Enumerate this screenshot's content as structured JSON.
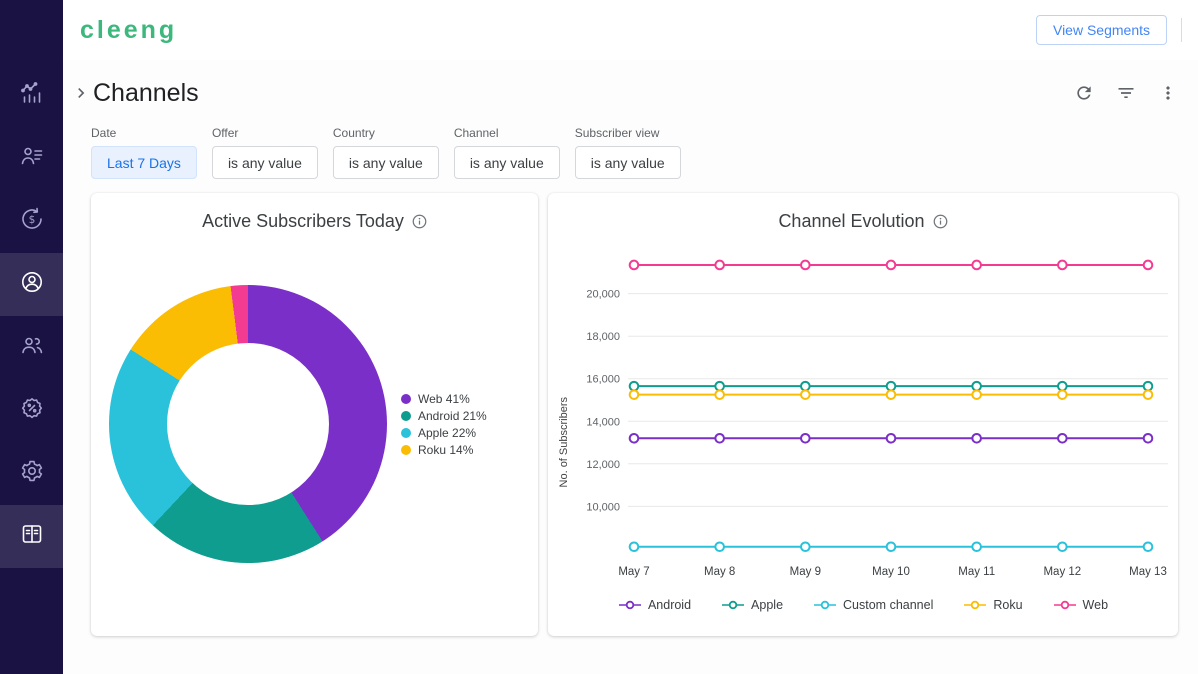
{
  "app": {
    "logo_text": "cleeng",
    "header": {
      "view_segments_label": "View Segments"
    }
  },
  "sidebar": {
    "items": [
      {
        "name": "analytics",
        "icon": "chart-icon",
        "active": false
      },
      {
        "name": "subscribers",
        "icon": "subscriber-list-icon",
        "active": false
      },
      {
        "name": "finance",
        "icon": "dollar-icon",
        "active": false
      },
      {
        "name": "active-subscribers",
        "icon": "person-circle-icon",
        "active": true
      },
      {
        "name": "audience",
        "icon": "people-icon",
        "active": false
      },
      {
        "name": "coupons",
        "icon": "percent-badge-icon",
        "active": false
      },
      {
        "name": "settings",
        "icon": "gear-icon",
        "active": false
      },
      {
        "name": "reports",
        "icon": "book-icon",
        "active": true
      }
    ]
  },
  "page": {
    "title": "Channels"
  },
  "filters": [
    {
      "label": "Date",
      "value": "Last 7 Days",
      "active": true
    },
    {
      "label": "Offer",
      "value": "is any value",
      "active": false
    },
    {
      "label": "Country",
      "value": "is any value",
      "active": false
    },
    {
      "label": "Channel",
      "value": "is any value",
      "active": false
    },
    {
      "label": "Subscriber view",
      "value": "is any value",
      "active": false
    }
  ],
  "cards": {
    "donut": {
      "title": "Active Subscribers Today"
    },
    "evolution": {
      "title": "Channel Evolution"
    }
  },
  "chart_data": [
    {
      "type": "pie",
      "title": "Active Subscribers Today",
      "donut": true,
      "segments": [
        {
          "label": "Web",
          "value": 41,
          "color": "#7a2fc9"
        },
        {
          "label": "Android",
          "value": 21,
          "color": "#0f9d8f"
        },
        {
          "label": "Apple",
          "value": 22,
          "color": "#29c2da"
        },
        {
          "label": "Roku",
          "value": 14,
          "color": "#fbbc04"
        }
      ],
      "unlabeled_remainder": {
        "value": 2,
        "color": "#f43b92"
      }
    },
    {
      "type": "line",
      "title": "Channel Evolution",
      "ylabel": "No. of Subscribers",
      "x": [
        "May 7",
        "May 8",
        "May 9",
        "May 10",
        "May 11",
        "May 12",
        "May 13"
      ],
      "ylim": [
        7900,
        22100
      ],
      "yticks": [
        10000,
        12000,
        14000,
        16000,
        18000,
        20000
      ],
      "grid": true,
      "legend_position": "bottom",
      "series": [
        {
          "name": "Android",
          "color": "#7a2fc9",
          "values": [
            13200,
            13200,
            13200,
            13200,
            13200,
            13200,
            13200
          ]
        },
        {
          "name": "Apple",
          "color": "#0f9d8f",
          "values": [
            15650,
            15650,
            15650,
            15650,
            15650,
            15650,
            15650
          ]
        },
        {
          "name": "Custom channel",
          "color": "#29c2da",
          "values": [
            8100,
            8100,
            8100,
            8100,
            8100,
            8100,
            8100
          ]
        },
        {
          "name": "Roku",
          "color": "#fbbc04",
          "values": [
            15250,
            15250,
            15250,
            15250,
            15250,
            15250,
            15250
          ]
        },
        {
          "name": "Web",
          "color": "#f43b92",
          "values": [
            21350,
            21350,
            21350,
            21350,
            21350,
            21350,
            21350
          ]
        }
      ]
    }
  ]
}
